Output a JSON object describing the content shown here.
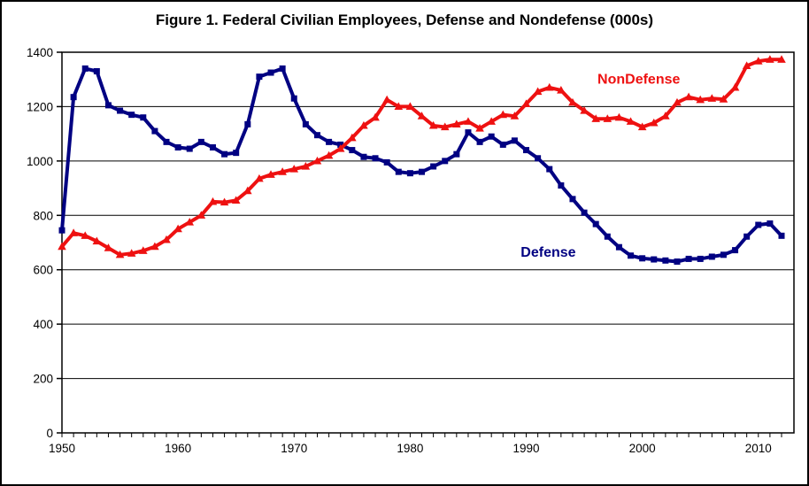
{
  "figure": {
    "title": "Figure 1. Federal Civilian Employees, Defense and Nondefense (000s)"
  },
  "chart_data": {
    "type": "line",
    "title": "Figure 1. Federal Civilian Employees, Defense and Nondefense (000s)",
    "xlabel": "",
    "ylabel": "",
    "xlim": [
      1950,
      2012
    ],
    "ylim": [
      0,
      1400
    ],
    "grid": "horizontal",
    "legend_position": "inline-annotations",
    "y_ticks": [
      0,
      200,
      400,
      600,
      800,
      1000,
      1200,
      1400
    ],
    "x_tick_labels": [
      "1950",
      "1960",
      "1970",
      "1980",
      "1990",
      "2000",
      "2010"
    ],
    "x_tick_label_years": [
      1950,
      1960,
      1970,
      1980,
      1990,
      2000,
      2010
    ],
    "x_minor_tick_interval": 1,
    "x": [
      1950,
      1951,
      1952,
      1953,
      1954,
      1955,
      1956,
      1957,
      1958,
      1959,
      1960,
      1961,
      1962,
      1963,
      1964,
      1965,
      1966,
      1967,
      1968,
      1969,
      1970,
      1971,
      1972,
      1973,
      1974,
      1975,
      1976,
      1977,
      1978,
      1979,
      1980,
      1981,
      1982,
      1983,
      1984,
      1985,
      1986,
      1987,
      1988,
      1989,
      1990,
      1991,
      1992,
      1993,
      1994,
      1995,
      1996,
      1997,
      1998,
      1999,
      2000,
      2001,
      2002,
      2003,
      2004,
      2005,
      2006,
      2007,
      2008,
      2009,
      2010,
      2011,
      2012
    ],
    "series": [
      {
        "name": "Defense",
        "color": "#000082",
        "marker": "square",
        "values": [
          745,
          1235,
          1340,
          1330,
          1205,
          1185,
          1170,
          1160,
          1110,
          1070,
          1050,
          1045,
          1070,
          1050,
          1025,
          1030,
          1135,
          1310,
          1325,
          1340,
          1230,
          1135,
          1095,
          1070,
          1060,
          1040,
          1015,
          1010,
          995,
          960,
          955,
          960,
          980,
          1000,
          1025,
          1105,
          1070,
          1090,
          1060,
          1075,
          1040,
          1010,
          970,
          910,
          860,
          810,
          768,
          722,
          683,
          652,
          642,
          638,
          634,
          630,
          640,
          640,
          648,
          655,
          672,
          722,
          765,
          770,
          725
        ]
      },
      {
        "name": "NonDefense",
        "color": "#EE1111",
        "marker": "triangle",
        "values": [
          685,
          735,
          725,
          705,
          680,
          655,
          660,
          670,
          685,
          710,
          750,
          775,
          800,
          850,
          848,
          855,
          890,
          935,
          950,
          960,
          970,
          980,
          1000,
          1020,
          1045,
          1085,
          1130,
          1160,
          1225,
          1200,
          1200,
          1165,
          1130,
          1125,
          1135,
          1145,
          1120,
          1145,
          1170,
          1165,
          1210,
          1255,
          1270,
          1260,
          1215,
          1185,
          1155,
          1155,
          1160,
          1145,
          1125,
          1140,
          1165,
          1215,
          1235,
          1225,
          1230,
          1227,
          1270,
          1350,
          1367,
          1373,
          1373
        ]
      }
    ],
    "annotations": [
      {
        "text": "NonDefense",
        "color": "#EE1111",
        "x_year": 1999.7,
        "y_value": 1300
      },
      {
        "text": "Defense",
        "color": "#000082",
        "x_year": 1991.9,
        "y_value": 665
      }
    ]
  }
}
